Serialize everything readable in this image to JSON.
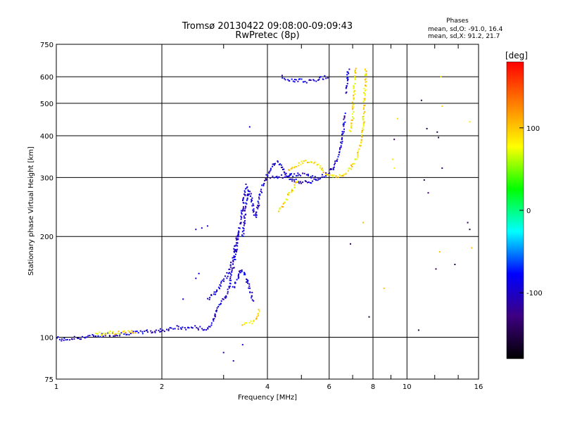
{
  "chart_data": {
    "type": "scatter",
    "title": "Tromsø 20130422 09:08:00-09:09:43",
    "subtitle": "RwPretec (8p)",
    "xlabel": "Frequency [MHz]",
    "ylabel": "Stationary phase Virtual Height [km]",
    "xscale": "log",
    "yscale": "log",
    "xlim": [
      1,
      16
    ],
    "ylim": [
      75,
      750
    ],
    "xticks": [
      1,
      2,
      4,
      6,
      8,
      10,
      16
    ],
    "xtick_labels": [
      "1",
      "2",
      "4",
      "6",
      "8",
      "10",
      "16"
    ],
    "yticks": [
      75,
      100,
      200,
      300,
      400,
      500,
      600,
      750
    ],
    "ytick_labels": [
      "75",
      "100",
      "200",
      "300",
      "400",
      "500",
      "600",
      "750"
    ],
    "grid": true,
    "annotation": {
      "heading": "Phases",
      "line1": "mean, sd,O: -91.0, 16.4",
      "line2": "mean, sd,X:  91.2, 21.7"
    },
    "colorbar": {
      "label": "[deg]",
      "range": [
        -180,
        180
      ],
      "ticks": [
        100,
        0,
        -100
      ],
      "tick_labels": [
        "100",
        "0",
        "-100"
      ],
      "colors": [
        "#000000",
        "#3d0080",
        "#0000ff",
        "#00ffff",
        "#00ff00",
        "#ffff00",
        "#ff8000",
        "#ff0000"
      ]
    },
    "series": [
      {
        "mode": "O",
        "phase": -95,
        "traces": [
          [
            [
              1.0,
              100
            ],
            [
              1.05,
              98
            ],
            [
              1.1,
              99
            ],
            [
              1.2,
              100
            ],
            [
              1.3,
              101
            ],
            [
              1.4,
              102
            ],
            [
              1.5,
              102
            ],
            [
              1.6,
              103
            ],
            [
              1.7,
              103
            ],
            [
              1.8,
              104
            ],
            [
              1.9,
              104
            ],
            [
              2.0,
              105
            ],
            [
              2.1,
              106
            ],
            [
              2.2,
              107
            ],
            [
              2.3,
              106
            ],
            [
              2.4,
              107
            ],
            [
              2.5,
              107
            ],
            [
              2.6,
              106
            ],
            [
              2.7,
              106
            ],
            [
              2.76,
              108
            ],
            [
              2.8,
              112
            ],
            [
              2.85,
              118
            ],
            [
              2.9,
              124
            ],
            [
              3.0,
              130
            ],
            [
              3.1,
              138
            ],
            [
              3.15,
              150
            ],
            [
              3.2,
              165
            ],
            [
              3.25,
              180
            ],
            [
              3.3,
              200
            ],
            [
              3.35,
              220
            ],
            [
              3.4,
              245
            ],
            [
              3.45,
              270
            ],
            [
              3.5,
              290
            ]
          ],
          [
            [
              2.7,
              130
            ],
            [
              2.8,
              134
            ],
            [
              2.9,
              140
            ],
            [
              3.0,
              148
            ],
            [
              3.1,
              156
            ],
            [
              3.2,
              175
            ],
            [
              3.3,
              205
            ]
          ],
          [
            [
              3.2,
              140
            ],
            [
              3.3,
              150
            ],
            [
              3.35,
              160
            ],
            [
              3.4,
              158
            ],
            [
              3.5,
              148
            ],
            [
              3.55,
              140
            ],
            [
              3.6,
              135
            ],
            [
              3.65,
              128
            ]
          ],
          [
            [
              3.4,
              200
            ],
            [
              3.45,
              230
            ],
            [
              3.5,
              260
            ],
            [
              3.55,
              275
            ],
            [
              3.6,
              260
            ],
            [
              3.65,
              240
            ],
            [
              3.7,
              228
            ],
            [
              3.75,
              240
            ],
            [
              3.8,
              265
            ],
            [
              3.9,
              290
            ],
            [
              4.0,
              305
            ],
            [
              4.1,
              320
            ],
            [
              4.2,
              330
            ],
            [
              4.3,
              332
            ],
            [
              4.4,
              325
            ],
            [
              4.5,
              310
            ],
            [
              4.6,
              300
            ],
            [
              4.7,
              296
            ],
            [
              4.8,
              294
            ],
            [
              4.9,
              292
            ],
            [
              5.0,
              290
            ],
            [
              5.2,
              290
            ],
            [
              5.4,
              292
            ],
            [
              5.6,
              298
            ],
            [
              5.8,
              305
            ],
            [
              6.0,
              312
            ],
            [
              6.2,
              325
            ],
            [
              6.4,
              350
            ],
            [
              6.5,
              380
            ],
            [
              6.6,
              420
            ],
            [
              6.65,
              470
            ]
          ],
          [
            [
              4.1,
              300
            ],
            [
              4.3,
              302
            ],
            [
              4.5,
              303
            ],
            [
              4.7,
              305
            ],
            [
              4.9,
              307
            ],
            [
              5.1,
              305
            ],
            [
              5.3,
              303
            ],
            [
              5.5,
              302
            ]
          ],
          [
            [
              4.4,
              600
            ],
            [
              4.6,
              590
            ],
            [
              4.8,
              585
            ],
            [
              5.0,
              584
            ],
            [
              5.2,
              583
            ],
            [
              5.4,
              586
            ],
            [
              5.6,
              590
            ],
            [
              5.8,
              596
            ],
            [
              6.0,
              605
            ]
          ],
          [
            [
              6.7,
              540
            ],
            [
              6.75,
              580
            ],
            [
              6.8,
              620
            ],
            [
              6.82,
              640
            ]
          ]
        ],
        "points": [
          [
            3.56,
            425
          ],
          [
            2.5,
            210
          ],
          [
            2.6,
            212
          ],
          [
            2.7,
            215
          ],
          [
            2.5,
            150
          ],
          [
            2.55,
            155
          ],
          [
            2.3,
            130
          ],
          [
            3.0,
            90
          ],
          [
            3.2,
            85
          ],
          [
            3.4,
            95
          ]
        ]
      },
      {
        "mode": "X",
        "phase": 90,
        "traces": [
          [
            [
              1.3,
              102
            ],
            [
              1.4,
              103
            ],
            [
              1.5,
              103
            ],
            [
              1.6,
              104
            ],
            [
              1.7,
              104
            ]
          ],
          [
            [
              3.4,
              109
            ],
            [
              3.5,
              110
            ],
            [
              3.6,
              111
            ],
            [
              3.7,
              112
            ],
            [
              3.75,
              115
            ],
            [
              3.8,
              122
            ]
          ],
          [
            [
              4.3,
              240
            ],
            [
              4.4,
              248
            ],
            [
              4.5,
              256
            ],
            [
              4.6,
              265
            ],
            [
              4.7,
              275
            ],
            [
              4.8,
              285
            ],
            [
              4.9,
              298
            ]
          ],
          [
            [
              4.6,
              315
            ],
            [
              4.8,
              325
            ],
            [
              5.0,
              332
            ],
            [
              5.2,
              336
            ],
            [
              5.4,
              333
            ],
            [
              5.6,
              325
            ],
            [
              5.8,
              312
            ],
            [
              6.0,
              305
            ],
            [
              6.3,
              300
            ],
            [
              6.6,
              305
            ],
            [
              6.9,
              320
            ],
            [
              7.2,
              345
            ],
            [
              7.4,
              385
            ],
            [
              7.5,
              430
            ],
            [
              7.55,
              500
            ],
            [
              7.6,
              560
            ],
            [
              7.62,
              600
            ],
            [
              7.62,
              640
            ]
          ],
          [
            [
              6.9,
              410
            ],
            [
              7.0,
              455
            ],
            [
              7.05,
              520
            ],
            [
              7.1,
              600
            ],
            [
              7.12,
              640
            ]
          ]
        ],
        "points": [
          [
            8.6,
            140
          ],
          [
            9.1,
            340
          ],
          [
            9.2,
            320
          ],
          [
            9.4,
            450
          ],
          [
            12.5,
            600
          ],
          [
            12.6,
            490
          ],
          [
            12.4,
            180
          ],
          [
            15.3,
            185
          ],
          [
            15.1,
            440
          ],
          [
            7.5,
            220
          ]
        ]
      },
      {
        "mode": "misc",
        "phase": -150,
        "traces": [],
        "points": [
          [
            7.8,
            115
          ],
          [
            9.2,
            390
          ],
          [
            11.0,
            510
          ],
          [
            11.4,
            420
          ],
          [
            12.2,
            410
          ],
          [
            12.3,
            395
          ],
          [
            12.6,
            320
          ],
          [
            11.2,
            295
          ],
          [
            11.5,
            270
          ],
          [
            13.7,
            165
          ],
          [
            14.9,
            220
          ],
          [
            15.1,
            210
          ],
          [
            12.1,
            160
          ],
          [
            10.8,
            105
          ],
          [
            6.9,
            190
          ]
        ]
      }
    ]
  }
}
